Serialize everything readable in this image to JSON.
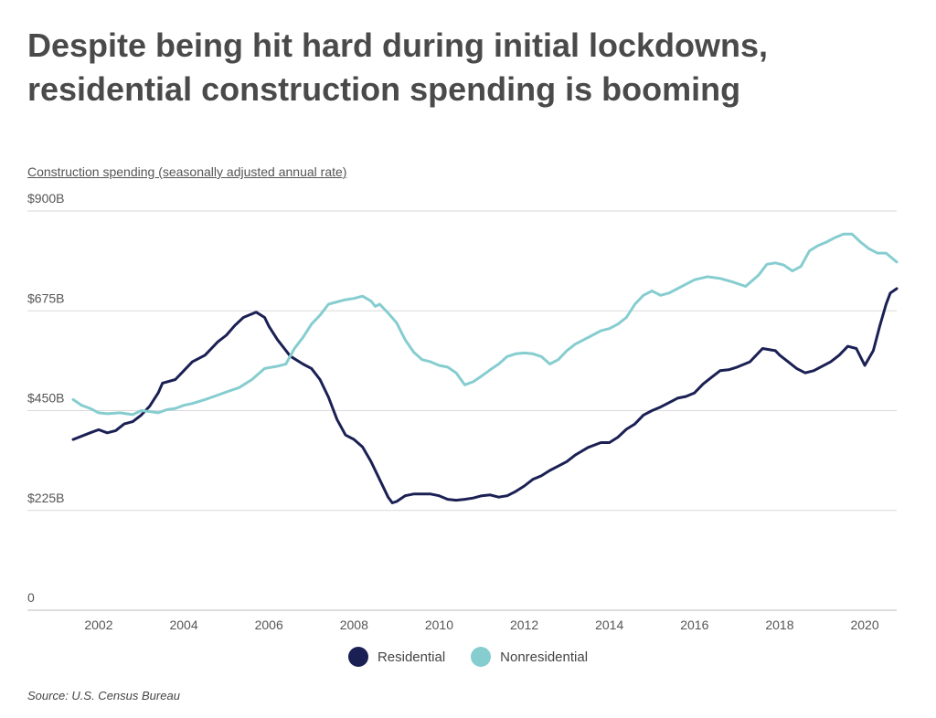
{
  "title": "Despite being hit hard during initial lockdowns, residential construction spending is booming",
  "subtitle": "Construction spending (seasonally adjusted annual rate)",
  "source": "Source:  U.S. Census Bureau",
  "chart_data": {
    "type": "line",
    "ylim": [
      0,
      900
    ],
    "xlim": [
      2001.4,
      2020.75
    ],
    "y_ticks": [
      {
        "value": 0,
        "label": "0"
      },
      {
        "value": 225,
        "label": "$225B"
      },
      {
        "value": 450,
        "label": "$450B"
      },
      {
        "value": 675,
        "label": "$675B"
      },
      {
        "value": 900,
        "label": "$900B"
      }
    ],
    "x_ticks": [
      {
        "value": 2002,
        "label": "2002"
      },
      {
        "value": 2004,
        "label": "2004"
      },
      {
        "value": 2006,
        "label": "2006"
      },
      {
        "value": 2008,
        "label": "2008"
      },
      {
        "value": 2010,
        "label": "2010"
      },
      {
        "value": 2012,
        "label": "2012"
      },
      {
        "value": 2014,
        "label": "2014"
      },
      {
        "value": 2016,
        "label": "2016"
      },
      {
        "value": 2018,
        "label": "2018"
      },
      {
        "value": 2020,
        "label": "2020"
      }
    ],
    "grid": true,
    "legend_position": "bottom",
    "series": [
      {
        "name": "Residential",
        "color": "#1b2054",
        "points": [
          [
            2001.4,
            385
          ],
          [
            2001.8,
            400
          ],
          [
            2002.0,
            407
          ],
          [
            2002.2,
            400
          ],
          [
            2002.4,
            405
          ],
          [
            2002.6,
            420
          ],
          [
            2002.8,
            425
          ],
          [
            2003.0,
            440
          ],
          [
            2003.2,
            460
          ],
          [
            2003.4,
            490
          ],
          [
            2003.5,
            512
          ],
          [
            2003.8,
            520
          ],
          [
            2004.0,
            540
          ],
          [
            2004.2,
            560
          ],
          [
            2004.5,
            575
          ],
          [
            2004.8,
            605
          ],
          [
            2005.0,
            620
          ],
          [
            2005.2,
            642
          ],
          [
            2005.4,
            660
          ],
          [
            2005.7,
            672
          ],
          [
            2005.9,
            660
          ],
          [
            2006.0,
            640
          ],
          [
            2006.2,
            610
          ],
          [
            2006.5,
            573
          ],
          [
            2006.8,
            555
          ],
          [
            2007.0,
            545
          ],
          [
            2007.2,
            520
          ],
          [
            2007.4,
            480
          ],
          [
            2007.6,
            430
          ],
          [
            2007.8,
            395
          ],
          [
            2008.0,
            385
          ],
          [
            2008.2,
            368
          ],
          [
            2008.4,
            335
          ],
          [
            2008.6,
            295
          ],
          [
            2008.8,
            255
          ],
          [
            2008.9,
            242
          ],
          [
            2009.0,
            245
          ],
          [
            2009.2,
            258
          ],
          [
            2009.4,
            262
          ],
          [
            2009.6,
            262
          ],
          [
            2009.8,
            262
          ],
          [
            2010.0,
            258
          ],
          [
            2010.2,
            250
          ],
          [
            2010.4,
            248
          ],
          [
            2010.6,
            250
          ],
          [
            2010.8,
            253
          ],
          [
            2011.0,
            258
          ],
          [
            2011.2,
            260
          ],
          [
            2011.4,
            255
          ],
          [
            2011.6,
            258
          ],
          [
            2011.8,
            268
          ],
          [
            2012.0,
            280
          ],
          [
            2012.2,
            295
          ],
          [
            2012.4,
            303
          ],
          [
            2012.6,
            315
          ],
          [
            2012.8,
            325
          ],
          [
            2013.0,
            335
          ],
          [
            2013.2,
            350
          ],
          [
            2013.5,
            367
          ],
          [
            2013.8,
            378
          ],
          [
            2014.0,
            378
          ],
          [
            2014.2,
            390
          ],
          [
            2014.4,
            408
          ],
          [
            2014.6,
            420
          ],
          [
            2014.8,
            440
          ],
          [
            2015.0,
            450
          ],
          [
            2015.2,
            458
          ],
          [
            2015.4,
            468
          ],
          [
            2015.6,
            478
          ],
          [
            2015.8,
            482
          ],
          [
            2016.0,
            490
          ],
          [
            2016.2,
            510
          ],
          [
            2016.4,
            525
          ],
          [
            2016.6,
            540
          ],
          [
            2016.8,
            542
          ],
          [
            2017.0,
            548
          ],
          [
            2017.3,
            560
          ],
          [
            2017.6,
            590
          ],
          [
            2017.9,
            585
          ],
          [
            2018.0,
            575
          ],
          [
            2018.2,
            560
          ],
          [
            2018.4,
            545
          ],
          [
            2018.6,
            535
          ],
          [
            2018.8,
            540
          ],
          [
            2019.0,
            550
          ],
          [
            2019.2,
            560
          ],
          [
            2019.4,
            575
          ],
          [
            2019.6,
            595
          ],
          [
            2019.8,
            590
          ],
          [
            2020.0,
            552
          ],
          [
            2020.2,
            585
          ],
          [
            2020.35,
            640
          ],
          [
            2020.5,
            690
          ],
          [
            2020.6,
            715
          ],
          [
            2020.75,
            725
          ]
        ]
      },
      {
        "name": "Nonresidential",
        "color": "#86cdd0",
        "points": [
          [
            2001.4,
            475
          ],
          [
            2001.6,
            462
          ],
          [
            2001.8,
            455
          ],
          [
            2002.0,
            445
          ],
          [
            2002.2,
            443
          ],
          [
            2002.5,
            445
          ],
          [
            2002.8,
            441
          ],
          [
            2003.0,
            450
          ],
          [
            2003.2,
            448
          ],
          [
            2003.4,
            445
          ],
          [
            2003.6,
            452
          ],
          [
            2003.8,
            455
          ],
          [
            2004.0,
            462
          ],
          [
            2004.2,
            466
          ],
          [
            2004.5,
            475
          ],
          [
            2004.8,
            485
          ],
          [
            2005.0,
            492
          ],
          [
            2005.3,
            502
          ],
          [
            2005.6,
            520
          ],
          [
            2005.9,
            545
          ],
          [
            2006.2,
            550
          ],
          [
            2006.4,
            555
          ],
          [
            2006.6,
            590
          ],
          [
            2006.8,
            615
          ],
          [
            2007.0,
            645
          ],
          [
            2007.2,
            665
          ],
          [
            2007.4,
            690
          ],
          [
            2007.6,
            695
          ],
          [
            2007.8,
            700
          ],
          [
            2008.0,
            703
          ],
          [
            2008.2,
            708
          ],
          [
            2008.4,
            697
          ],
          [
            2008.5,
            685
          ],
          [
            2008.6,
            690
          ],
          [
            2008.8,
            670
          ],
          [
            2009.0,
            648
          ],
          [
            2009.2,
            610
          ],
          [
            2009.4,
            582
          ],
          [
            2009.6,
            565
          ],
          [
            2009.8,
            560
          ],
          [
            2010.0,
            552
          ],
          [
            2010.2,
            548
          ],
          [
            2010.4,
            535
          ],
          [
            2010.6,
            508
          ],
          [
            2010.8,
            515
          ],
          [
            2011.0,
            528
          ],
          [
            2011.2,
            542
          ],
          [
            2011.4,
            555
          ],
          [
            2011.6,
            572
          ],
          [
            2011.8,
            578
          ],
          [
            2012.0,
            580
          ],
          [
            2012.2,
            578
          ],
          [
            2012.4,
            572
          ],
          [
            2012.6,
            555
          ],
          [
            2012.8,
            565
          ],
          [
            2013.0,
            585
          ],
          [
            2013.2,
            600
          ],
          [
            2013.4,
            610
          ],
          [
            2013.6,
            620
          ],
          [
            2013.8,
            630
          ],
          [
            2014.0,
            635
          ],
          [
            2014.2,
            645
          ],
          [
            2014.4,
            660
          ],
          [
            2014.6,
            690
          ],
          [
            2014.8,
            710
          ],
          [
            2015.0,
            720
          ],
          [
            2015.2,
            710
          ],
          [
            2015.4,
            715
          ],
          [
            2015.6,
            725
          ],
          [
            2015.8,
            735
          ],
          [
            2016.0,
            745
          ],
          [
            2016.3,
            752
          ],
          [
            2016.6,
            748
          ],
          [
            2016.9,
            740
          ],
          [
            2017.2,
            730
          ],
          [
            2017.5,
            755
          ],
          [
            2017.7,
            780
          ],
          [
            2017.9,
            783
          ],
          [
            2018.1,
            778
          ],
          [
            2018.3,
            765
          ],
          [
            2018.5,
            775
          ],
          [
            2018.7,
            810
          ],
          [
            2018.9,
            822
          ],
          [
            2019.1,
            830
          ],
          [
            2019.3,
            840
          ],
          [
            2019.5,
            848
          ],
          [
            2019.7,
            848
          ],
          [
            2019.9,
            830
          ],
          [
            2020.1,
            815
          ],
          [
            2020.3,
            805
          ],
          [
            2020.5,
            805
          ],
          [
            2020.75,
            785
          ]
        ]
      }
    ]
  }
}
